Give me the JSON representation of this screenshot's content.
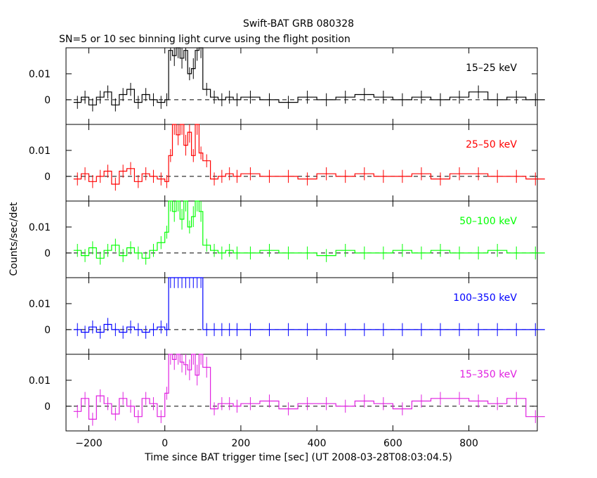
{
  "title": "Swift-BAT GRB 080328",
  "subtitle": "SN=5 or 10 sec binning light curve using the flight position",
  "xlabel": "Time since BAT trigger time [sec] (UT 2008-03-28T08:03:04.5)",
  "ylabel": "Counts/sec/det",
  "chart_data": {
    "type": "line",
    "title": "Swift-BAT GRB 080328",
    "subtitle": "SN=5 or 10 sec binning light curve using the flight position",
    "xlabel": "Time since BAT trigger time [sec] (UT 2008-03-28T08:03:04.5)",
    "ylabel": "Counts/sec/det",
    "xlim": [
      -260,
      980
    ],
    "ylim": [
      -0.0095,
      0.02
    ],
    "xticks": [
      -200,
      0,
      200,
      400,
      600,
      800
    ],
    "yticks": [
      0,
      0.01
    ],
    "ytick_labels": [
      "0",
      "0.01"
    ],
    "xtick_labels": [
      "−200",
      "0",
      "200",
      "400",
      "600",
      "800"
    ],
    "panels": [
      {
        "label": "15–25 keV",
        "color": "#000000",
        "x": [
          -240,
          -220,
          -200,
          -180,
          -160,
          -140,
          -120,
          -100,
          -80,
          -60,
          -40,
          -20,
          0,
          10,
          20,
          30,
          40,
          50,
          60,
          70,
          80,
          90,
          100,
          120,
          140,
          160,
          180,
          200,
          250,
          300,
          350,
          400,
          450,
          500,
          550,
          600,
          650,
          700,
          750,
          800,
          850,
          900,
          950
        ],
        "y": [
          -0.001,
          0.001,
          -0.002,
          0.001,
          0.003,
          -0.002,
          0.002,
          0.004,
          -0.001,
          0.002,
          0.0,
          -0.001,
          0.0,
          0.019,
          0.017,
          0.02,
          0.016,
          0.019,
          0.01,
          0.012,
          0.019,
          0.02,
          0.004,
          0.001,
          0.0,
          0.001,
          0.0,
          0.001,
          0.0,
          -0.001,
          0.001,
          0.0,
          0.001,
          0.002,
          0.001,
          0.0,
          0.001,
          0.0,
          0.001,
          0.003,
          0.0,
          0.001,
          0.0
        ]
      },
      {
        "label": "25–50 keV",
        "color": "#ff0000",
        "x": [
          -240,
          -220,
          -200,
          -180,
          -160,
          -140,
          -120,
          -100,
          -80,
          -60,
          -40,
          -20,
          0,
          10,
          20,
          30,
          40,
          50,
          60,
          70,
          80,
          90,
          100,
          120,
          140,
          160,
          180,
          200,
          250,
          300,
          350,
          400,
          450,
          500,
          550,
          600,
          650,
          700,
          750,
          800,
          850,
          900,
          950
        ],
        "y": [
          -0.001,
          0.001,
          -0.002,
          0.0,
          0.002,
          -0.003,
          0.002,
          0.003,
          -0.002,
          0.001,
          0.0,
          -0.001,
          -0.002,
          0.008,
          0.02,
          0.016,
          0.02,
          0.012,
          0.017,
          0.008,
          0.02,
          0.009,
          0.006,
          -0.001,
          0.0,
          0.001,
          0.0,
          0.001,
          0.0,
          0.0,
          -0.001,
          0.001,
          0.0,
          0.001,
          0.0,
          0.0,
          0.001,
          -0.001,
          0.001,
          0.001,
          0.0,
          0.0,
          -0.001
        ]
      },
      {
        "label": "50–100 keV",
        "color": "#00ff00",
        "x": [
          -240,
          -220,
          -200,
          -180,
          -160,
          -140,
          -120,
          -100,
          -80,
          -60,
          -40,
          -20,
          0,
          10,
          20,
          30,
          40,
          50,
          60,
          70,
          80,
          90,
          100,
          120,
          140,
          160,
          180,
          200,
          250,
          300,
          350,
          400,
          450,
          500,
          550,
          600,
          650,
          700,
          750,
          800,
          850,
          900,
          950
        ],
        "y": [
          0.001,
          -0.001,
          0.002,
          -0.002,
          0.001,
          0.003,
          -0.001,
          0.002,
          0.0,
          -0.002,
          0.001,
          0.004,
          0.008,
          0.02,
          0.016,
          0.02,
          0.013,
          0.02,
          0.01,
          0.014,
          0.02,
          0.016,
          0.003,
          0.001,
          0.0,
          0.001,
          0.0,
          0.0,
          0.001,
          0.0,
          0.0,
          -0.001,
          0.001,
          0.0,
          0.0,
          0.001,
          0.0,
          0.001,
          0.0,
          0.0,
          0.001,
          0.0,
          0.0
        ]
      },
      {
        "label": "100–350 keV",
        "color": "#0000ff",
        "x": [
          -240,
          -220,
          -200,
          -180,
          -160,
          -140,
          -120,
          -100,
          -80,
          -60,
          -40,
          -20,
          0,
          10,
          20,
          30,
          40,
          50,
          60,
          70,
          80,
          90,
          100,
          120,
          140,
          160,
          180,
          200,
          250,
          300,
          350,
          400,
          450,
          500,
          550,
          600,
          650,
          700,
          750,
          800,
          850,
          900,
          950
        ],
        "y": [
          0.0,
          -0.001,
          0.001,
          -0.001,
          0.002,
          0.0,
          -0.001,
          0.001,
          0.0,
          -0.001,
          0.0,
          0.001,
          0.0,
          0.02,
          0.02,
          0.02,
          0.02,
          0.02,
          0.02,
          0.02,
          0.02,
          0.02,
          0.0,
          0.0,
          0.0,
          0.0,
          0.0,
          0.0,
          0.0,
          0.0,
          0.0,
          0.0,
          0.0,
          0.0,
          0.0,
          0.0,
          0.0,
          0.0,
          0.0,
          0.0,
          0.0,
          0.0,
          0.0
        ]
      },
      {
        "label": "15–350 keV",
        "color": "#e020e0",
        "x": [
          -240,
          -220,
          -200,
          -180,
          -160,
          -140,
          -120,
          -100,
          -80,
          -60,
          -40,
          -20,
          0,
          10,
          20,
          30,
          40,
          50,
          60,
          70,
          80,
          90,
          100,
          120,
          140,
          160,
          180,
          200,
          250,
          300,
          350,
          400,
          450,
          500,
          550,
          600,
          650,
          700,
          750,
          800,
          850,
          900,
          950
        ],
        "y": [
          -0.002,
          0.003,
          -0.005,
          0.004,
          0.001,
          -0.003,
          0.003,
          0.0,
          -0.004,
          0.003,
          0.001,
          -0.004,
          0.005,
          0.02,
          0.018,
          0.02,
          0.017,
          0.016,
          0.014,
          0.02,
          0.012,
          0.02,
          0.015,
          -0.001,
          0.001,
          0.001,
          0.0,
          0.001,
          0.002,
          -0.001,
          0.001,
          0.001,
          0.0,
          0.002,
          0.001,
          -0.001,
          0.002,
          0.003,
          0.003,
          0.002,
          0.001,
          0.003,
          -0.004
        ]
      }
    ]
  }
}
